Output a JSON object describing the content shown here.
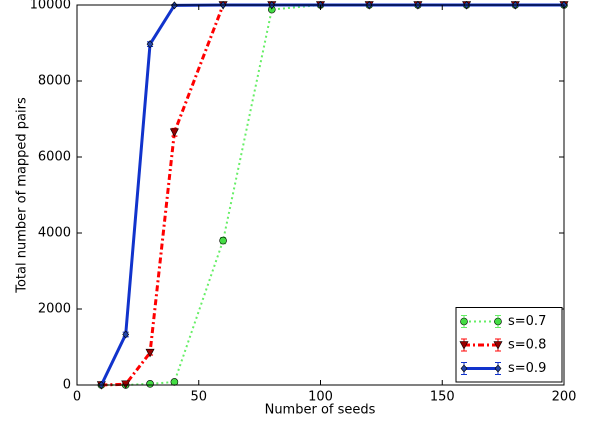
{
  "chart_data": {
    "type": "line",
    "x_label": "Number of seeds",
    "y_label": "Total number of mapped pairs",
    "x": [
      10,
      20,
      30,
      40,
      60,
      80,
      100,
      120,
      140,
      160,
      180,
      200
    ],
    "series": [
      {
        "name": "s=0.7",
        "color": "#66ee66",
        "marker_color": "#44dd44",
        "marker": "circle",
        "dash": "2,3",
        "width": 2,
        "values": [
          0,
          0,
          30,
          80,
          3800,
          9880,
          10000,
          10000,
          10000,
          10000,
          10000,
          10000
        ],
        "errors": [
          0,
          0,
          20,
          30,
          80,
          50,
          0,
          0,
          0,
          0,
          0,
          0
        ]
      },
      {
        "name": "s=0.8",
        "color": "#ff0000",
        "marker_color": "#990000",
        "marker": "triangle-down",
        "dash": "6,3,2,3",
        "width": 3,
        "values": [
          0,
          20,
          850,
          6650,
          10000,
          10000,
          10000,
          10000,
          10000,
          10000,
          10000,
          10000
        ],
        "errors": [
          0,
          20,
          60,
          100,
          0,
          0,
          0,
          0,
          0,
          0,
          0,
          0
        ]
      },
      {
        "name": "s=0.9",
        "color": "#1133cc",
        "marker_color": "#2244aa",
        "marker": "diamond",
        "dash": "",
        "width": 3,
        "values": [
          0,
          1330,
          8970,
          9990,
          10000,
          10000,
          10000,
          10000,
          10000,
          10000,
          10000,
          10000
        ],
        "errors": [
          0,
          60,
          60,
          20,
          0,
          0,
          0,
          0,
          0,
          0,
          0,
          0
        ]
      }
    ],
    "xlim": [
      0,
      200
    ],
    "xticks": [
      0,
      50,
      100,
      150,
      200
    ],
    "ylim": [
      0,
      10000
    ],
    "yticks": [
      0,
      2000,
      4000,
      6000,
      8000,
      10000
    ],
    "grid": false,
    "legend": "lower right"
  }
}
